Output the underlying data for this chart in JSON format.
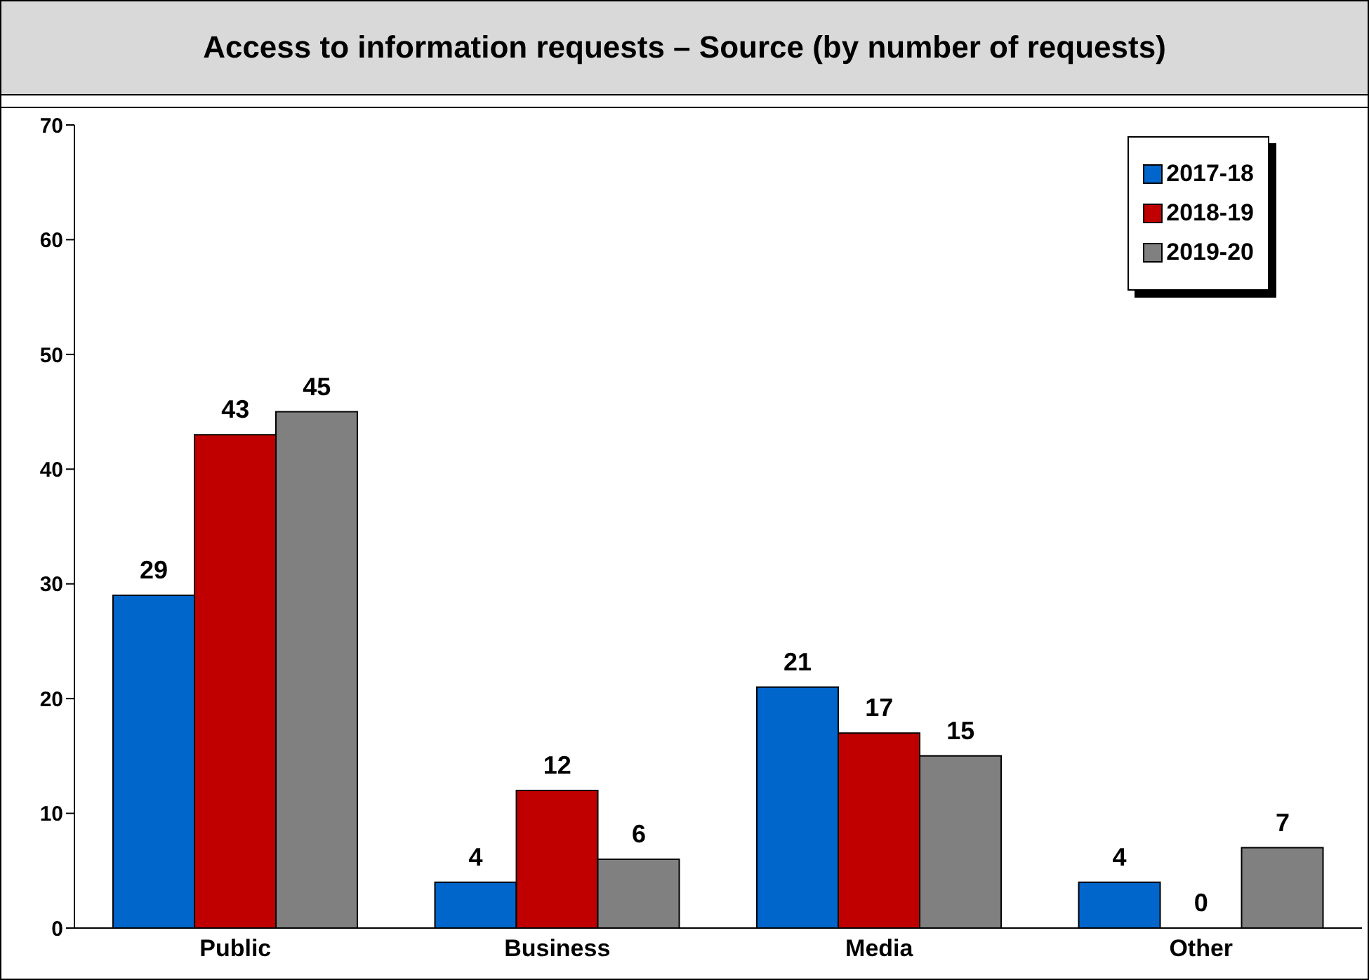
{
  "chart_data": {
    "type": "bar",
    "title": "Access to information requests – Source (by number of requests)",
    "categories": [
      "Public",
      "Business",
      "Media",
      "Other"
    ],
    "series": [
      {
        "name": "2017-18",
        "color": "#0066cc",
        "values": [
          29,
          4,
          21,
          4
        ]
      },
      {
        "name": "2018-19",
        "color": "#c00000",
        "values": [
          43,
          12,
          17,
          0
        ]
      },
      {
        "name": "2019-20",
        "color": "#808080",
        "values": [
          45,
          6,
          15,
          7
        ]
      }
    ],
    "ylim": [
      0,
      70
    ],
    "yticks": [
      0,
      10,
      20,
      30,
      40,
      50,
      60,
      70
    ],
    "grid": false,
    "legend": "top right",
    "data_labels": true
  }
}
